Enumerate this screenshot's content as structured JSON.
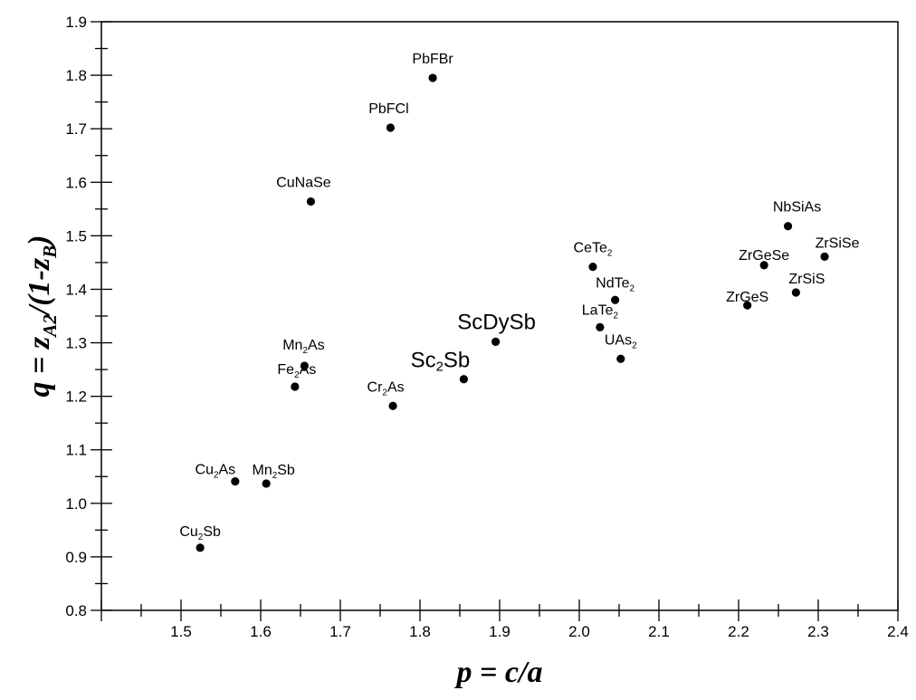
{
  "chart_data": {
    "type": "scatter",
    "xlabel": {
      "pre": "p = c/a"
    },
    "ylabel": {
      "q": "q",
      "eq": " = z",
      "sub1": "A2",
      "mid": "/(1-z",
      "sub2": "B",
      "end": ")"
    },
    "xlim": [
      1.4,
      2.4
    ],
    "ylim": [
      0.8,
      1.9
    ],
    "xticks": [
      1.5,
      1.6,
      1.7,
      1.8,
      1.9,
      2.0,
      2.1,
      2.2,
      2.3,
      2.4
    ],
    "xtick_labels": [
      "1.5",
      "1.6",
      "1.7",
      "1.8",
      "1.9",
      "2.0",
      "2.1",
      "2.2",
      "2.3",
      "2.4"
    ],
    "yticks": [
      0.8,
      0.9,
      1.0,
      1.1,
      1.2,
      1.3,
      1.4,
      1.5,
      1.6,
      1.7,
      1.8,
      1.9
    ],
    "ytick_labels": [
      "0.8",
      "0.9",
      "1.0",
      "1.1",
      "1.2",
      "1.3",
      "1.4",
      "1.5",
      "1.6",
      "1.7",
      "1.8",
      "1.9"
    ],
    "grid": false,
    "marker_color": "#000000",
    "points": [
      {
        "label": [
          "PbFBr"
        ],
        "x": 1.816,
        "y": 1.795
      },
      {
        "label": [
          "PbFCl"
        ],
        "x": 1.763,
        "y": 1.702
      },
      {
        "label": [
          "CuNaSe"
        ],
        "x": 1.663,
        "y": 1.564
      },
      {
        "label": [
          "Mn",
          "2",
          "As"
        ],
        "x": 1.655,
        "y": 1.257
      },
      {
        "label": [
          "Fe",
          "2",
          "As"
        ],
        "x": 1.643,
        "y": 1.218
      },
      {
        "label": [
          "Cr",
          "2",
          "As"
        ],
        "x": 1.766,
        "y": 1.182
      },
      {
        "label": [
          "ScDySb"
        ],
        "x": 1.895,
        "y": 1.302,
        "emphasis": true
      },
      {
        "label": [
          "Sc",
          "2",
          "Sb"
        ],
        "x": 1.855,
        "y": 1.232,
        "emphasis": true
      },
      {
        "label": [
          "CeTe",
          "2"
        ],
        "x": 2.017,
        "y": 1.442
      },
      {
        "label": [
          "NdTe",
          "2"
        ],
        "x": 2.045,
        "y": 1.38
      },
      {
        "label": [
          "LaTe",
          "2"
        ],
        "x": 2.026,
        "y": 1.329
      },
      {
        "label": [
          "UAs",
          "2"
        ],
        "x": 2.052,
        "y": 1.27
      },
      {
        "label": [
          "NbSiAs"
        ],
        "x": 2.262,
        "y": 1.518
      },
      {
        "label": [
          "ZrGeSe"
        ],
        "x": 2.232,
        "y": 1.445
      },
      {
        "label": [
          "ZrSiSe"
        ],
        "x": 2.308,
        "y": 1.461
      },
      {
        "label": [
          "ZrSiS"
        ],
        "x": 2.272,
        "y": 1.394
      },
      {
        "label": [
          "ZrGeS"
        ],
        "x": 2.211,
        "y": 1.37
      },
      {
        "label": [
          "Cu",
          "2",
          "As"
        ],
        "x": 1.568,
        "y": 1.041
      },
      {
        "label": [
          "Mn",
          "2",
          "Sb"
        ],
        "x": 1.607,
        "y": 1.037
      },
      {
        "label": [
          "Cu",
          "2",
          "Sb"
        ],
        "x": 1.524,
        "y": 0.917
      }
    ]
  }
}
